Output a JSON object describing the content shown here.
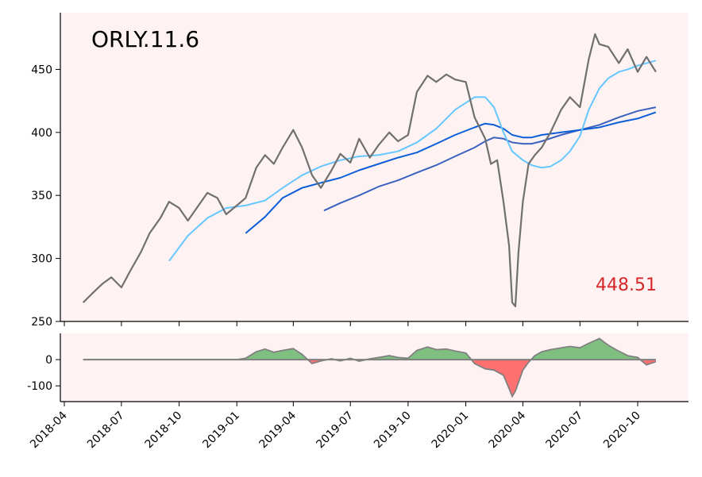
{
  "chart_data": [
    {
      "type": "line",
      "title": "ORLY.11.6",
      "annotation": "448.51",
      "ylim": [
        250,
        495
      ],
      "y_ticks": [
        250,
        300,
        350,
        400,
        450
      ],
      "x_ticks": [
        "2018-04",
        "2018-07",
        "2018-10",
        "2019-01",
        "2019-04",
        "2019-07",
        "2019-10",
        "2020-01",
        "2020-04",
        "2020-07",
        "2020-10"
      ],
      "colors": {
        "price": "#707070",
        "ma_short": "#66c7ff",
        "ma_mid": "#0b5ed7",
        "ma_long": "#3a62bf",
        "annotation": "#d62728",
        "background": "#fff2f2"
      },
      "series": [
        {
          "key": "price",
          "points": [
            [
              "2018-05-01",
              265
            ],
            [
              "2018-05-15",
              272
            ],
            [
              "2018-06-01",
              280
            ],
            [
              "2018-06-15",
              285
            ],
            [
              "2018-07-01",
              277
            ],
            [
              "2018-07-15",
              290
            ],
            [
              "2018-08-01",
              305
            ],
            [
              "2018-08-15",
              320
            ],
            [
              "2018-09-01",
              332
            ],
            [
              "2018-09-15",
              345
            ],
            [
              "2018-10-01",
              340
            ],
            [
              "2018-10-15",
              330
            ],
            [
              "2018-11-01",
              342
            ],
            [
              "2018-11-15",
              352
            ],
            [
              "2018-12-01",
              348
            ],
            [
              "2018-12-15",
              335
            ],
            [
              "2019-01-01",
              342
            ],
            [
              "2019-01-15",
              348
            ],
            [
              "2019-02-01",
              372
            ],
            [
              "2019-02-15",
              382
            ],
            [
              "2019-03-01",
              375
            ],
            [
              "2019-03-15",
              388
            ],
            [
              "2019-04-01",
              402
            ],
            [
              "2019-04-15",
              388
            ],
            [
              "2019-05-01",
              366
            ],
            [
              "2019-05-15",
              356
            ],
            [
              "2019-06-01",
              370
            ],
            [
              "2019-06-15",
              383
            ],
            [
              "2019-07-01",
              376
            ],
            [
              "2019-07-15",
              395
            ],
            [
              "2019-08-01",
              380
            ],
            [
              "2019-08-15",
              390
            ],
            [
              "2019-09-01",
              400
            ],
            [
              "2019-09-15",
              393
            ],
            [
              "2019-10-01",
              398
            ],
            [
              "2019-10-15",
              432
            ],
            [
              "2019-11-01",
              445
            ],
            [
              "2019-11-15",
              440
            ],
            [
              "2019-12-01",
              446
            ],
            [
              "2019-12-15",
              442
            ],
            [
              "2020-01-01",
              440
            ],
            [
              "2020-01-15",
              412
            ],
            [
              "2020-02-01",
              395
            ],
            [
              "2020-02-10",
              375
            ],
            [
              "2020-02-20",
              378
            ],
            [
              "2020-03-01",
              345
            ],
            [
              "2020-03-10",
              310
            ],
            [
              "2020-03-15",
              265
            ],
            [
              "2020-03-20",
              262
            ],
            [
              "2020-03-25",
              305
            ],
            [
              "2020-04-01",
              345
            ],
            [
              "2020-04-10",
              375
            ],
            [
              "2020-04-20",
              382
            ],
            [
              "2020-05-01",
              388
            ],
            [
              "2020-05-15",
              400
            ],
            [
              "2020-06-01",
              418
            ],
            [
              "2020-06-15",
              428
            ],
            [
              "2020-07-01",
              420
            ],
            [
              "2020-07-15",
              458
            ],
            [
              "2020-07-25",
              478
            ],
            [
              "2020-08-01",
              470
            ],
            [
              "2020-08-15",
              468
            ],
            [
              "2020-09-01",
              455
            ],
            [
              "2020-09-15",
              466
            ],
            [
              "2020-10-01",
              448
            ],
            [
              "2020-10-15",
              460
            ],
            [
              "2020-10-30",
              448
            ]
          ]
        },
        {
          "key": "ma_short",
          "points": [
            [
              "2018-09-15",
              298
            ],
            [
              "2018-10-15",
              318
            ],
            [
              "2018-11-15",
              332
            ],
            [
              "2018-12-15",
              340
            ],
            [
              "2019-01-15",
              342
            ],
            [
              "2019-02-15",
              346
            ],
            [
              "2019-03-15",
              356
            ],
            [
              "2019-04-15",
              366
            ],
            [
              "2019-05-15",
              373
            ],
            [
              "2019-06-15",
              378
            ],
            [
              "2019-07-15",
              381
            ],
            [
              "2019-08-15",
              382
            ],
            [
              "2019-09-15",
              385
            ],
            [
              "2019-10-15",
              392
            ],
            [
              "2019-11-15",
              403
            ],
            [
              "2019-12-15",
              418
            ],
            [
              "2020-01-15",
              428
            ],
            [
              "2020-02-01",
              428
            ],
            [
              "2020-02-15",
              420
            ],
            [
              "2020-03-01",
              400
            ],
            [
              "2020-03-15",
              385
            ],
            [
              "2020-04-01",
              378
            ],
            [
              "2020-04-15",
              374
            ],
            [
              "2020-05-01",
              372
            ],
            [
              "2020-05-15",
              373
            ],
            [
              "2020-06-01",
              378
            ],
            [
              "2020-06-15",
              385
            ],
            [
              "2020-07-01",
              397
            ],
            [
              "2020-07-15",
              418
            ],
            [
              "2020-08-01",
              435
            ],
            [
              "2020-08-15",
              443
            ],
            [
              "2020-09-01",
              448
            ],
            [
              "2020-09-15",
              450
            ],
            [
              "2020-10-01",
              453
            ],
            [
              "2020-10-30",
              457
            ]
          ]
        },
        {
          "key": "ma_mid",
          "points": [
            [
              "2019-01-15",
              320
            ],
            [
              "2019-02-15",
              333
            ],
            [
              "2019-03-15",
              348
            ],
            [
              "2019-04-15",
              356
            ],
            [
              "2019-05-15",
              360
            ],
            [
              "2019-06-15",
              364
            ],
            [
              "2019-07-15",
              370
            ],
            [
              "2019-08-15",
              375
            ],
            [
              "2019-09-15",
              380
            ],
            [
              "2019-10-15",
              384
            ],
            [
              "2019-11-15",
              391
            ],
            [
              "2019-12-15",
              398
            ],
            [
              "2020-01-15",
              404
            ],
            [
              "2020-02-01",
              407
            ],
            [
              "2020-02-15",
              406
            ],
            [
              "2020-03-01",
              403
            ],
            [
              "2020-03-15",
              398
            ],
            [
              "2020-04-01",
              396
            ],
            [
              "2020-04-15",
              396
            ],
            [
              "2020-05-01",
              398
            ],
            [
              "2020-06-01",
              400
            ],
            [
              "2020-07-01",
              402
            ],
            [
              "2020-08-01",
              404
            ],
            [
              "2020-09-01",
              408
            ],
            [
              "2020-10-01",
              411
            ],
            [
              "2020-10-30",
              416
            ]
          ]
        },
        {
          "key": "ma_long",
          "points": [
            [
              "2019-05-20",
              338
            ],
            [
              "2019-06-15",
              344
            ],
            [
              "2019-07-15",
              350
            ],
            [
              "2019-08-15",
              357
            ],
            [
              "2019-09-15",
              362
            ],
            [
              "2019-10-15",
              368
            ],
            [
              "2019-11-15",
              374
            ],
            [
              "2019-12-15",
              381
            ],
            [
              "2020-01-15",
              388
            ],
            [
              "2020-02-01",
              393
            ],
            [
              "2020-02-15",
              396
            ],
            [
              "2020-03-01",
              395
            ],
            [
              "2020-03-15",
              392
            ],
            [
              "2020-04-01",
              391
            ],
            [
              "2020-04-15",
              391
            ],
            [
              "2020-05-01",
              393
            ],
            [
              "2020-06-01",
              398
            ],
            [
              "2020-07-01",
              402
            ],
            [
              "2020-08-01",
              406
            ],
            [
              "2020-09-01",
              412
            ],
            [
              "2020-10-01",
              417
            ],
            [
              "2020-10-30",
              420
            ]
          ]
        }
      ]
    },
    {
      "type": "area",
      "ylim": [
        -160,
        100
      ],
      "y_ticks": [
        0,
        -100
      ],
      "colors": {
        "positive": "#7fbf7f",
        "negative": "#ff7070",
        "line": "#808080"
      },
      "points": [
        [
          "2018-05-01",
          0
        ],
        [
          "2019-01-01",
          0
        ],
        [
          "2019-01-15",
          5
        ],
        [
          "2019-02-01",
          30
        ],
        [
          "2019-02-15",
          40
        ],
        [
          "2019-03-01",
          28
        ],
        [
          "2019-03-15",
          35
        ],
        [
          "2019-04-01",
          42
        ],
        [
          "2019-04-15",
          20
        ],
        [
          "2019-05-01",
          -15
        ],
        [
          "2019-05-15",
          -5
        ],
        [
          "2019-06-01",
          3
        ],
        [
          "2019-06-15",
          -5
        ],
        [
          "2019-07-01",
          5
        ],
        [
          "2019-07-15",
          -6
        ],
        [
          "2019-08-01",
          3
        ],
        [
          "2019-08-15",
          8
        ],
        [
          "2019-09-01",
          15
        ],
        [
          "2019-09-15",
          8
        ],
        [
          "2019-10-01",
          5
        ],
        [
          "2019-10-15",
          35
        ],
        [
          "2019-11-01",
          48
        ],
        [
          "2019-11-15",
          38
        ],
        [
          "2019-12-01",
          40
        ],
        [
          "2019-12-15",
          33
        ],
        [
          "2020-01-01",
          25
        ],
        [
          "2020-01-15",
          -15
        ],
        [
          "2020-02-01",
          -35
        ],
        [
          "2020-02-15",
          -40
        ],
        [
          "2020-03-01",
          -60
        ],
        [
          "2020-03-10",
          -110
        ],
        [
          "2020-03-15",
          -140
        ],
        [
          "2020-03-20",
          -120
        ],
        [
          "2020-04-01",
          -40
        ],
        [
          "2020-04-10",
          -10
        ],
        [
          "2020-04-20",
          15
        ],
        [
          "2020-05-01",
          30
        ],
        [
          "2020-05-15",
          38
        ],
        [
          "2020-06-01",
          45
        ],
        [
          "2020-06-15",
          50
        ],
        [
          "2020-07-01",
          45
        ],
        [
          "2020-07-15",
          62
        ],
        [
          "2020-08-01",
          80
        ],
        [
          "2020-08-15",
          55
        ],
        [
          "2020-09-01",
          32
        ],
        [
          "2020-09-15",
          15
        ],
        [
          "2020-10-01",
          8
        ],
        [
          "2020-10-15",
          -20
        ],
        [
          "2020-10-30",
          -8
        ]
      ]
    }
  ]
}
